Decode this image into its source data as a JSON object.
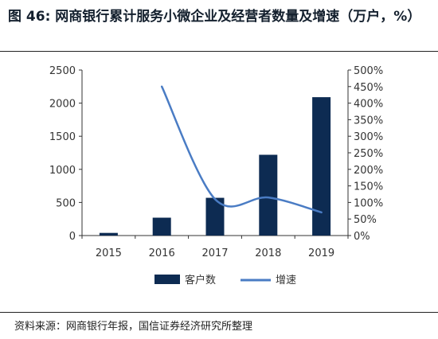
{
  "title": "图 46:  网商银行累计服务小微企业及经营者数量及增速（万户，%）",
  "source": "资料来源：网商银行年报，国信证券经济研究所整理",
  "chart_data": {
    "type": "bar",
    "categories": [
      "2015",
      "2016",
      "2017",
      "2018",
      "2019"
    ],
    "series": [
      {
        "name": "客户数",
        "type": "bar",
        "axis": "left",
        "color": "#0d2b52",
        "values": [
          40,
          270,
          570,
          1220,
          2090
        ]
      },
      {
        "name": "增速",
        "type": "line",
        "axis": "right",
        "color": "#4a7cc4",
        "values": [
          null,
          450,
          110,
          115,
          70
        ]
      }
    ],
    "y_left": {
      "min": 0,
      "max": 2500,
      "ticks": [
        "0",
        "500",
        "1000",
        "1500",
        "2000",
        "2500"
      ]
    },
    "y_right": {
      "min": 0,
      "max": 500,
      "ticks": [
        "0%",
        "50%",
        "100%",
        "150%",
        "200%",
        "250%",
        "300%",
        "350%",
        "400%",
        "450%",
        "500%"
      ]
    },
    "grid": false,
    "legend": "bottom"
  }
}
